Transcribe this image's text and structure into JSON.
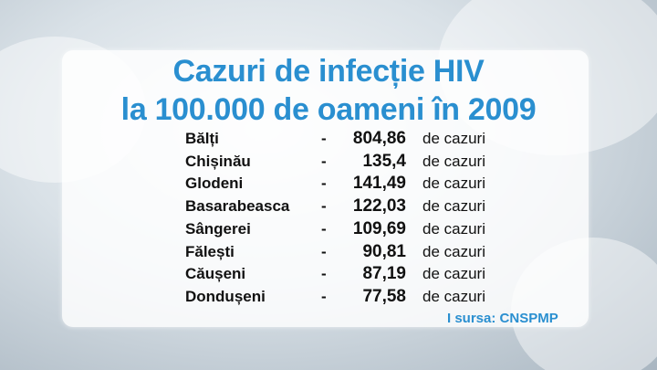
{
  "title": [
    "Cazuri de infecție HIV",
    "la 100.000 de oameni în 2009"
  ],
  "table": {
    "rows": [
      [
        "Bălți",
        "-",
        "804,86",
        "de cazuri"
      ],
      [
        "Chișinău",
        "-",
        "135,4",
        "de cazuri"
      ],
      [
        "Glodeni",
        "-",
        "141,49",
        "de cazuri"
      ],
      [
        "Basarabeasca",
        "-",
        "122,03",
        "de cazuri"
      ],
      [
        "Sângerei",
        "-",
        "109,69",
        "de cazuri"
      ],
      [
        "Fălești",
        "-",
        "90,81",
        "de cazuri"
      ],
      [
        "Căușeni",
        "-",
        "87,19",
        "de cazuri"
      ],
      [
        "Dondușeni",
        "-",
        "77,58",
        "de cazuri"
      ]
    ]
  },
  "source": "I sursa: CNSPMP"
}
